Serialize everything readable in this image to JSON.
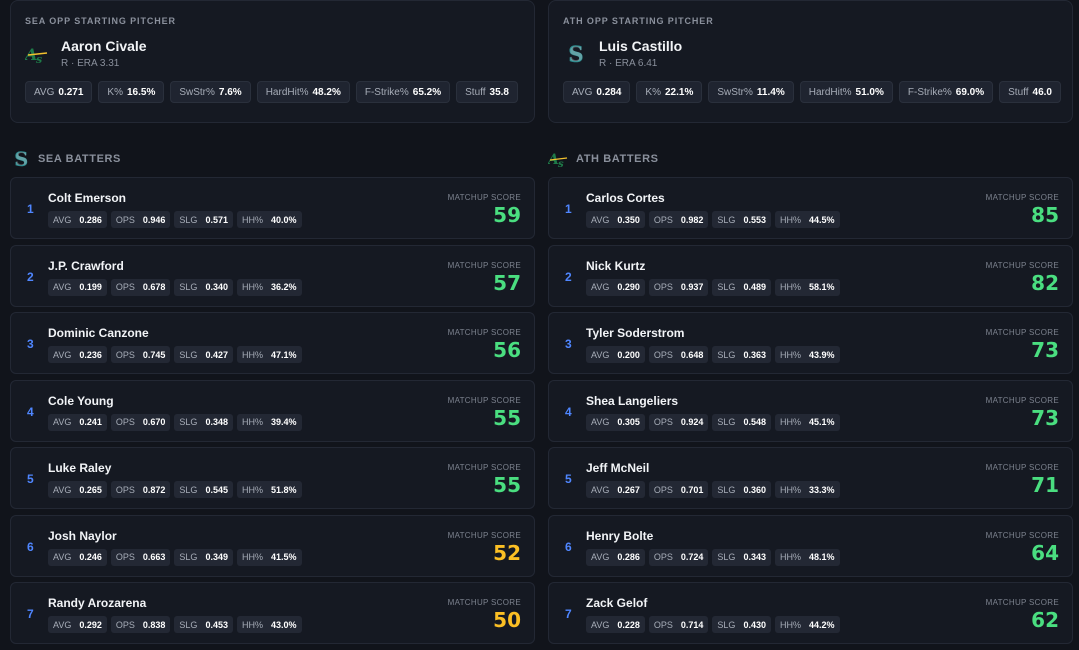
{
  "colors": {
    "green": "#4ade80",
    "yellow": "#fbbf24",
    "order": "#4f86ff"
  },
  "left": {
    "pitcher": {
      "label": "SEA OPP STARTING PITCHER",
      "logo_icon": "athletics-logo-icon",
      "name": "Aaron Civale",
      "sub": "R · ERA 3.31",
      "stats": [
        {
          "label": "AVG",
          "value": "0.271"
        },
        {
          "label": "K%",
          "value": "16.5%"
        },
        {
          "label": "SwStr%",
          "value": "7.6%"
        },
        {
          "label": "HardHit%",
          "value": "48.2%"
        },
        {
          "label": "F-Strike%",
          "value": "65.2%"
        },
        {
          "label": "Stuff",
          "value": "35.8"
        }
      ]
    },
    "team": {
      "logo_icon": "mariners-logo-icon",
      "label": "SEA BATTERS"
    },
    "score_label": "MATCHUP SCORE",
    "stat_labels": [
      "AVG",
      "OPS",
      "SLG",
      "HH%"
    ],
    "batters": [
      {
        "order": "1",
        "name": "Colt Emerson",
        "avg": "0.286",
        "ops": "0.946",
        "slg": "0.571",
        "hh": "40.0%",
        "score": "59",
        "tier": "green"
      },
      {
        "order": "2",
        "name": "J.P. Crawford",
        "avg": "0.199",
        "ops": "0.678",
        "slg": "0.340",
        "hh": "36.2%",
        "score": "57",
        "tier": "green"
      },
      {
        "order": "3",
        "name": "Dominic Canzone",
        "avg": "0.236",
        "ops": "0.745",
        "slg": "0.427",
        "hh": "47.1%",
        "score": "56",
        "tier": "green"
      },
      {
        "order": "4",
        "name": "Cole Young",
        "avg": "0.241",
        "ops": "0.670",
        "slg": "0.348",
        "hh": "39.4%",
        "score": "55",
        "tier": "green"
      },
      {
        "order": "5",
        "name": "Luke Raley",
        "avg": "0.265",
        "ops": "0.872",
        "slg": "0.545",
        "hh": "51.8%",
        "score": "55",
        "tier": "green"
      },
      {
        "order": "6",
        "name": "Josh Naylor",
        "avg": "0.246",
        "ops": "0.663",
        "slg": "0.349",
        "hh": "41.5%",
        "score": "52",
        "tier": "yellow"
      },
      {
        "order": "7",
        "name": "Randy Arozarena",
        "avg": "0.292",
        "ops": "0.838",
        "slg": "0.453",
        "hh": "43.0%",
        "score": "50",
        "tier": "yellow"
      }
    ]
  },
  "right": {
    "pitcher": {
      "label": "ATH OPP STARTING PITCHER",
      "logo_icon": "mariners-logo-icon",
      "name": "Luis Castillo",
      "sub": "R · ERA 6.41",
      "stats": [
        {
          "label": "AVG",
          "value": "0.284"
        },
        {
          "label": "K%",
          "value": "22.1%"
        },
        {
          "label": "SwStr%",
          "value": "11.4%"
        },
        {
          "label": "HardHit%",
          "value": "51.0%"
        },
        {
          "label": "F-Strike%",
          "value": "69.0%"
        },
        {
          "label": "Stuff",
          "value": "46.0"
        }
      ]
    },
    "team": {
      "logo_icon": "athletics-logo-icon",
      "label": "ATH BATTERS"
    },
    "score_label": "MATCHUP SCORE",
    "stat_labels": [
      "AVG",
      "OPS",
      "SLG",
      "HH%"
    ],
    "batters": [
      {
        "order": "1",
        "name": "Carlos Cortes",
        "avg": "0.350",
        "ops": "0.982",
        "slg": "0.553",
        "hh": "44.5%",
        "score": "85",
        "tier": "green"
      },
      {
        "order": "2",
        "name": "Nick Kurtz",
        "avg": "0.290",
        "ops": "0.937",
        "slg": "0.489",
        "hh": "58.1%",
        "score": "82",
        "tier": "green"
      },
      {
        "order": "3",
        "name": "Tyler Soderstrom",
        "avg": "0.200",
        "ops": "0.648",
        "slg": "0.363",
        "hh": "43.9%",
        "score": "73",
        "tier": "green"
      },
      {
        "order": "4",
        "name": "Shea Langeliers",
        "avg": "0.305",
        "ops": "0.924",
        "slg": "0.548",
        "hh": "45.1%",
        "score": "73",
        "tier": "green"
      },
      {
        "order": "5",
        "name": "Jeff McNeil",
        "avg": "0.267",
        "ops": "0.701",
        "slg": "0.360",
        "hh": "33.3%",
        "score": "71",
        "tier": "green"
      },
      {
        "order": "6",
        "name": "Henry Bolte",
        "avg": "0.286",
        "ops": "0.724",
        "slg": "0.343",
        "hh": "48.1%",
        "score": "64",
        "tier": "green"
      },
      {
        "order": "7",
        "name": "Zack Gelof",
        "avg": "0.228",
        "ops": "0.714",
        "slg": "0.430",
        "hh": "44.2%",
        "score": "62",
        "tier": "green"
      }
    ]
  }
}
